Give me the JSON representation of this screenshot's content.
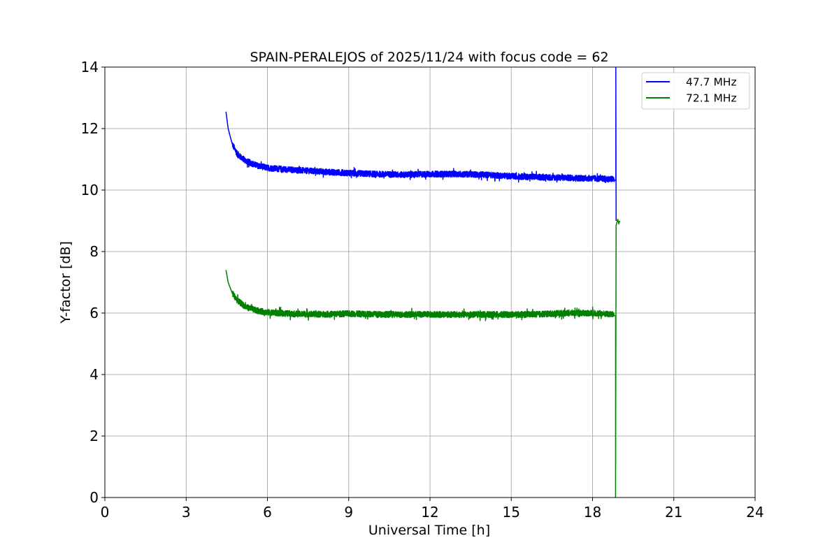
{
  "chart_data": {
    "type": "line",
    "title": "SPAIN-PERALEJOS of 2025/11/24 with focus code = 62",
    "xlabel": "Universal Time [h]",
    "ylabel": "Y-factor [dB]",
    "xlim": [
      0,
      24
    ],
    "ylim": [
      0,
      14
    ],
    "xticks": [
      0,
      3,
      6,
      9,
      12,
      15,
      18,
      21,
      24
    ],
    "yticks": [
      0,
      2,
      4,
      6,
      8,
      10,
      12,
      14
    ],
    "grid": true,
    "legend_position": "top-right",
    "series": [
      {
        "name": "47.7 MHz",
        "color": "#0000ff",
        "noise_db": 0.1,
        "points": [
          [
            4.47,
            12.55
          ],
          [
            4.55,
            12.0
          ],
          [
            4.7,
            11.5
          ],
          [
            4.9,
            11.15
          ],
          [
            5.2,
            10.95
          ],
          [
            5.6,
            10.8
          ],
          [
            6.0,
            10.72
          ],
          [
            7.0,
            10.65
          ],
          [
            8.0,
            10.6
          ],
          [
            9.0,
            10.55
          ],
          [
            10.0,
            10.52
          ],
          [
            11.0,
            10.5
          ],
          [
            12.0,
            10.52
          ],
          [
            13.0,
            10.52
          ],
          [
            14.0,
            10.5
          ],
          [
            15.0,
            10.45
          ],
          [
            16.0,
            10.42
          ],
          [
            17.0,
            10.4
          ],
          [
            18.0,
            10.38
          ],
          [
            18.8,
            10.35
          ],
          [
            18.86,
            10.3
          ],
          [
            18.86,
            14.0
          ],
          [
            18.87,
            9.0
          ]
        ]
      },
      {
        "name": "72.1 MHz",
        "color": "#008000",
        "noise_db": 0.1,
        "points": [
          [
            4.47,
            7.4
          ],
          [
            4.55,
            7.0
          ],
          [
            4.7,
            6.65
          ],
          [
            4.9,
            6.4
          ],
          [
            5.2,
            6.2
          ],
          [
            5.6,
            6.08
          ],
          [
            6.0,
            6.02
          ],
          [
            7.0,
            5.97
          ],
          [
            8.0,
            5.96
          ],
          [
            9.0,
            5.98
          ],
          [
            10.0,
            5.96
          ],
          [
            11.0,
            5.95
          ],
          [
            12.0,
            5.96
          ],
          [
            13.0,
            5.95
          ],
          [
            14.0,
            5.95
          ],
          [
            15.0,
            5.95
          ],
          [
            16.0,
            5.96
          ],
          [
            17.0,
            6.0
          ],
          [
            18.0,
            6.0
          ],
          [
            18.8,
            5.95
          ],
          [
            18.85,
            5.9
          ],
          [
            18.85,
            0.0
          ],
          [
            18.87,
            8.85
          ],
          [
            18.93,
            9.05
          ],
          [
            18.97,
            8.9
          ],
          [
            19.0,
            9.0
          ]
        ]
      }
    ]
  }
}
